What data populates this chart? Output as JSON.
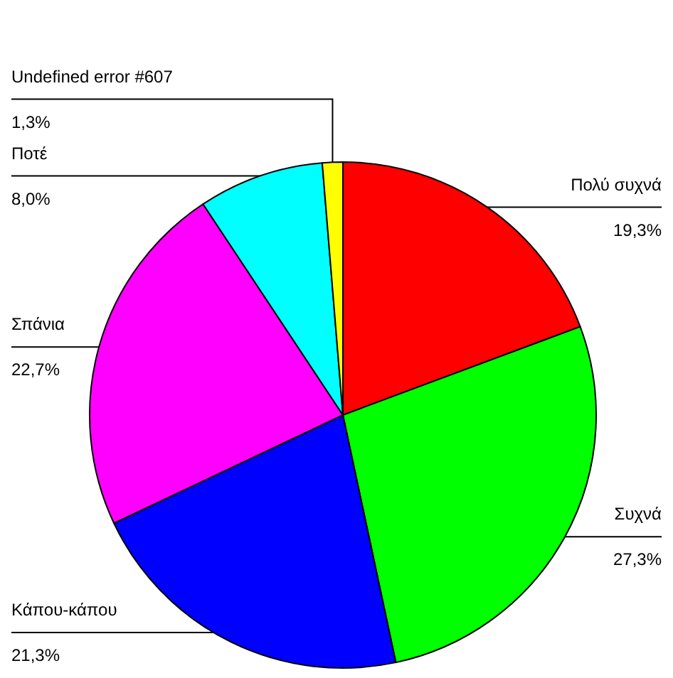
{
  "chart_data": {
    "type": "pie",
    "categories": [
      "Πολύ συχνά",
      "Συχνά",
      "Κάπου-κάπου",
      "Σπάνια",
      "Ποτέ",
      "Undefined error #607"
    ],
    "values": [
      19.3,
      27.3,
      21.3,
      22.7,
      8.0,
      1.3
    ],
    "colors": [
      "#ff0000",
      "#00ff00",
      "#0000ff",
      "#ff00ff",
      "#00ffff",
      "#ffff00"
    ],
    "value_labels": [
      "19,3%",
      "27,3%",
      "21,3%",
      "22,7%",
      "8,0%",
      "1,3%"
    ],
    "legend": false
  }
}
